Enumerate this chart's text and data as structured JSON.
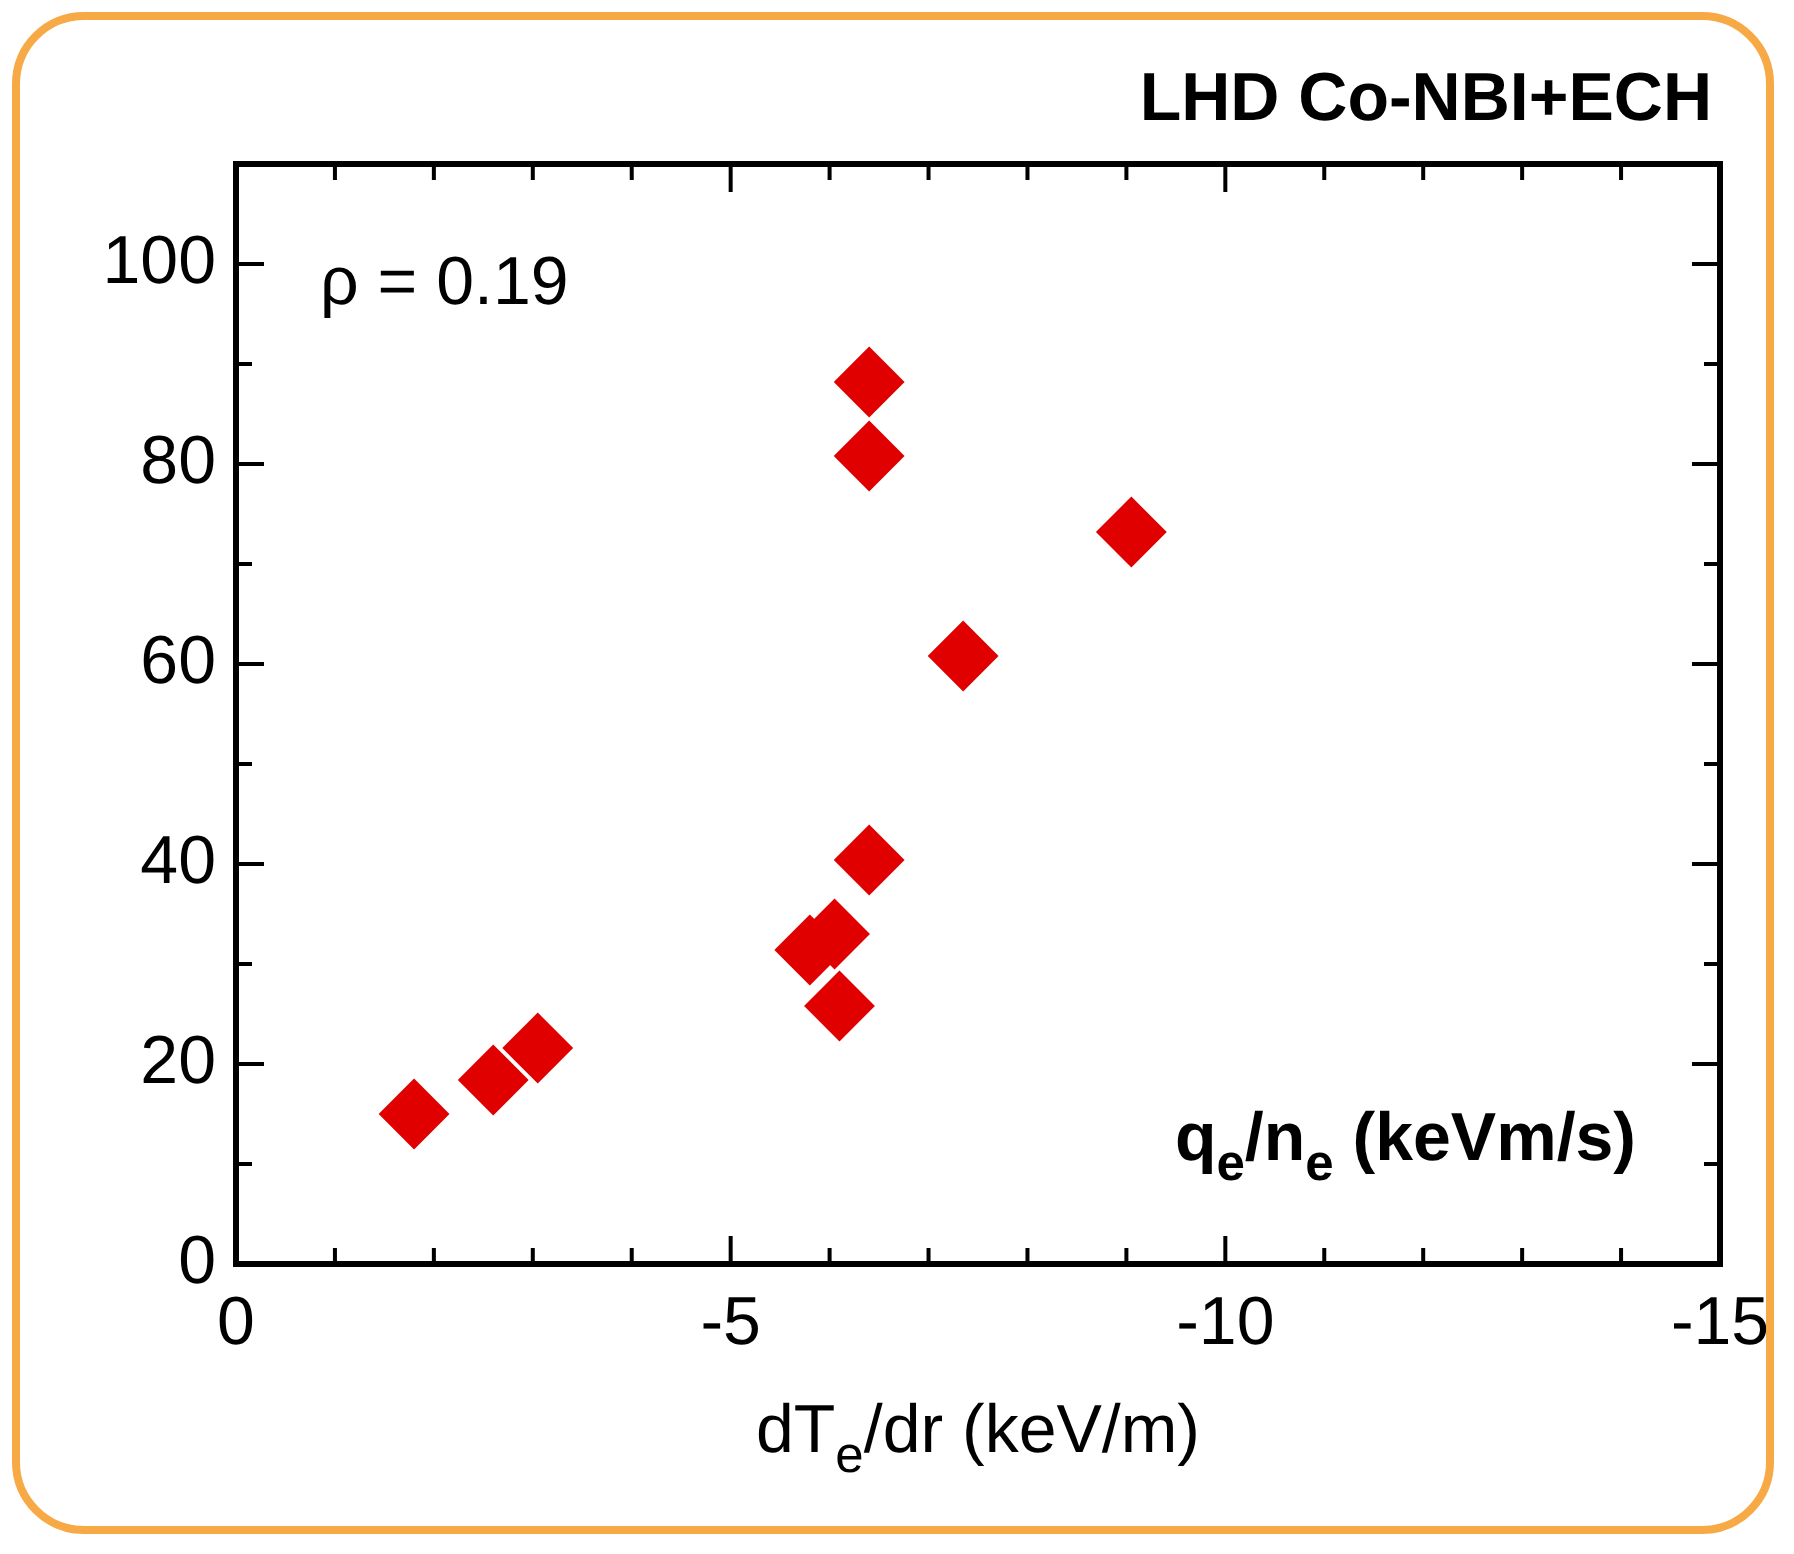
{
  "chart_data": {
    "type": "scatter",
    "title": "LHD Co-NBI+ECH",
    "xlabel": "dT$_{e}$/dr (keV/m)",
    "ylabel": "q$_{e}$/n$_{e}$ (keVm/s)",
    "annotations": [
      "ρ = 0.19"
    ],
    "x": [
      -1.8,
      -2.6,
      -3.05,
      -5.8,
      -6.05,
      -6.1,
      -6.4,
      -6.4,
      -6.4,
      -7.35,
      -9.05
    ],
    "series": [
      {
        "color": "#e00000",
        "values": [
          15,
          18.4,
          21.6,
          31.4,
          33,
          25.8,
          40.4,
          88.2,
          80.8,
          60.8,
          73.2
        ]
      }
    ],
    "marker": "diamond",
    "xlim": [
      0,
      -15
    ],
    "xticks": [
      0,
      {
        "value": -1,
        "label": null
      },
      {
        "value": -2,
        "label": null
      },
      {
        "value": -3,
        "label": null
      },
      {
        "value": -4,
        "label": null
      },
      -5,
      {
        "value": -6,
        "label": null
      },
      {
        "value": -7,
        "label": null
      },
      {
        "value": -8,
        "label": null
      },
      {
        "value": -9,
        "label": null
      },
      -10,
      {
        "value": -11,
        "label": null
      },
      {
        "value": -12,
        "label": null
      },
      {
        "value": -13,
        "label": null
      },
      {
        "value": -14,
        "label": null
      },
      -15
    ],
    "ylim": [
      0,
      110
    ],
    "yticks": [
      0,
      {
        "value": 10,
        "label": null
      },
      20,
      {
        "value": 30,
        "label": null
      },
      40,
      {
        "value": 50,
        "label": null
      },
      60,
      {
        "value": 70,
        "label": null
      },
      80,
      {
        "value": 90,
        "label": null
      },
      100
    ],
    "grid": false,
    "legend": false
  }
}
